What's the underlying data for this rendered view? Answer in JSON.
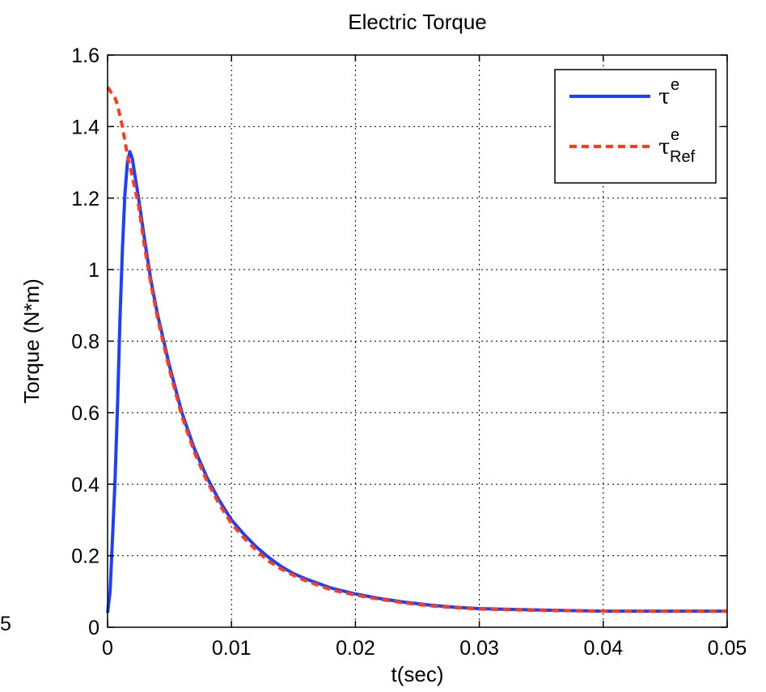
{
  "chart_data": {
    "type": "line",
    "title": "Electric Torque",
    "xlabel": "t(sec)",
    "ylabel": "Torque (N*m)",
    "xlim": [
      0,
      0.05
    ],
    "ylim": [
      0,
      1.6
    ],
    "xticks": [
      0,
      0.01,
      0.02,
      0.03,
      0.04,
      0.05
    ],
    "xtick_labels": [
      "0",
      "0.01",
      "0.02",
      "0.03",
      "0.04",
      "0.05"
    ],
    "yticks": [
      0,
      0.2,
      0.4,
      0.6,
      0.8,
      1.0,
      1.2,
      1.4,
      1.6
    ],
    "ytick_labels": [
      "0",
      "0.2",
      "0.4",
      "0.6",
      "0.8",
      "1",
      "1.2",
      "1.4",
      "1.6"
    ],
    "grid": true,
    "legend_position": "top-right",
    "stray_label": "5",
    "series": [
      {
        "name": "τe",
        "legend_base": "τ",
        "legend_sup": "e",
        "legend_sub": "",
        "color": "#1f3fff",
        "style": "solid",
        "x": [
          0,
          0.0002,
          0.0004,
          0.0006,
          0.0008,
          0.001,
          0.0012,
          0.0014,
          0.0016,
          0.0018,
          0.002,
          0.0025,
          0.003,
          0.0035,
          0.004,
          0.005,
          0.006,
          0.007,
          0.008,
          0.009,
          0.01,
          0.011,
          0.012,
          0.013,
          0.014,
          0.015,
          0.016,
          0.018,
          0.02,
          0.022,
          0.024,
          0.026,
          0.028,
          0.03,
          0.035,
          0.04,
          0.045,
          0.05
        ],
        "y": [
          0.04,
          0.1,
          0.25,
          0.41,
          0.62,
          0.86,
          1.06,
          1.21,
          1.3,
          1.33,
          1.31,
          1.2,
          1.08,
          0.97,
          0.88,
          0.73,
          0.6,
          0.5,
          0.42,
          0.355,
          0.3,
          0.26,
          0.225,
          0.195,
          0.17,
          0.15,
          0.135,
          0.11,
          0.093,
          0.08,
          0.07,
          0.062,
          0.056,
          0.052,
          0.048,
          0.045,
          0.045,
          0.045
        ]
      },
      {
        "name": "τe Ref",
        "legend_base": "τ",
        "legend_sup": "e",
        "legend_sub": "Ref",
        "color": "#ff3b1a",
        "style": "dashed",
        "x": [
          0,
          0.0002,
          0.0004,
          0.0006,
          0.0008,
          0.001,
          0.0012,
          0.0014,
          0.0016,
          0.0018,
          0.002,
          0.0025,
          0.003,
          0.0035,
          0.004,
          0.005,
          0.006,
          0.007,
          0.008,
          0.009,
          0.01,
          0.011,
          0.012,
          0.013,
          0.014,
          0.015,
          0.016,
          0.018,
          0.02,
          0.022,
          0.024,
          0.026,
          0.028,
          0.03,
          0.035,
          0.04,
          0.045,
          0.05
        ],
        "y": [
          1.51,
          1.5,
          1.49,
          1.48,
          1.46,
          1.43,
          1.4,
          1.36,
          1.32,
          1.29,
          1.26,
          1.18,
          1.06,
          0.96,
          0.87,
          0.72,
          0.59,
          0.49,
          0.41,
          0.345,
          0.29,
          0.25,
          0.215,
          0.185,
          0.163,
          0.145,
          0.13,
          0.105,
          0.09,
          0.078,
          0.068,
          0.06,
          0.055,
          0.051,
          0.047,
          0.045,
          0.045,
          0.045
        ]
      }
    ]
  }
}
